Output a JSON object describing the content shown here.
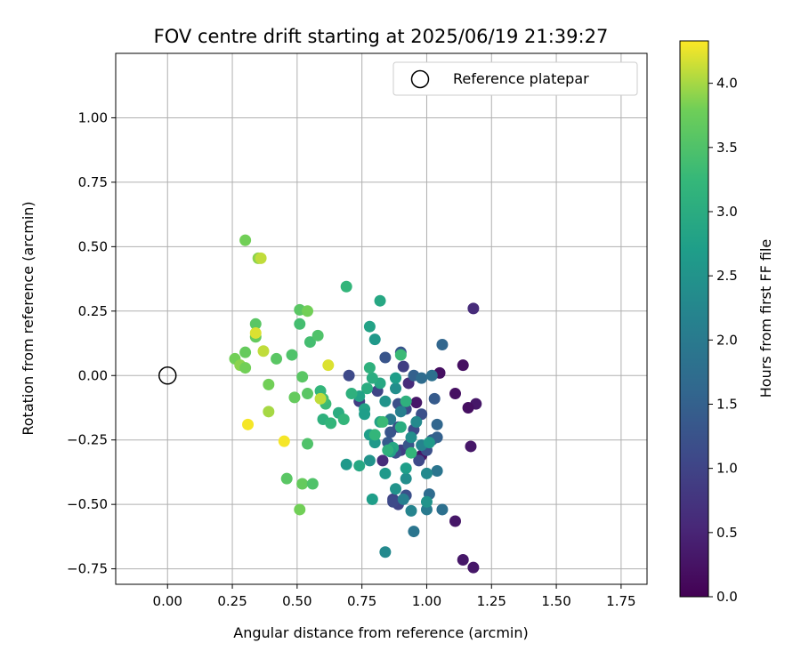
{
  "chart_data": {
    "type": "scatter",
    "title": "FOV centre drift starting at 2025/06/19 21:39:27",
    "xlabel": "Angular distance from reference (arcmin)",
    "ylabel": "Rotation from reference (arcmin)",
    "xlim": [
      -0.2,
      1.85
    ],
    "ylim": [
      -0.81,
      1.25
    ],
    "xticks": [
      "0.00",
      "0.25",
      "0.50",
      "0.75",
      "1.00",
      "1.25",
      "1.50",
      "1.75"
    ],
    "xtick_values": [
      0,
      0.25,
      0.5,
      0.75,
      1.0,
      1.25,
      1.5,
      1.75
    ],
    "yticks": [
      "−0.75",
      "−0.50",
      "−0.25",
      "0.00",
      "0.25",
      "0.50",
      "0.75",
      "1.00"
    ],
    "ytick_values": [
      -0.75,
      -0.5,
      -0.25,
      0,
      0.25,
      0.5,
      0.75,
      1.0
    ],
    "grid": true,
    "colormap": "viridis",
    "colorbar": {
      "label": "Hours from first FF file",
      "range": [
        0.0,
        4.33
      ],
      "ticks": [
        "0.0",
        "0.5",
        "1.0",
        "1.5",
        "2.0",
        "2.5",
        "3.0",
        "3.5",
        "4.0"
      ],
      "tick_values": [
        0,
        0.5,
        1.0,
        1.5,
        2.0,
        2.5,
        3.0,
        3.5,
        4.0
      ]
    },
    "legend": {
      "placement": "top-right",
      "label": "Reference platepar"
    },
    "reference": {
      "x": 0.0,
      "y": 0.0
    },
    "points": [
      {
        "x": 1.18,
        "y": -0.745,
        "c": 0.3
      },
      {
        "x": 1.14,
        "y": -0.715,
        "c": 0.3
      },
      {
        "x": 1.11,
        "y": -0.565,
        "c": 0.3
      },
      {
        "x": 1.17,
        "y": -0.275,
        "c": 0.3
      },
      {
        "x": 1.19,
        "y": -0.11,
        "c": 0.3
      },
      {
        "x": 1.16,
        "y": -0.125,
        "c": 0.2
      },
      {
        "x": 1.11,
        "y": -0.07,
        "c": 0.2
      },
      {
        "x": 1.14,
        "y": 0.04,
        "c": 0.2
      },
      {
        "x": 1.05,
        "y": 0.01,
        "c": 0.2
      },
      {
        "x": 1.18,
        "y": 0.26,
        "c": 0.6
      },
      {
        "x": 0.98,
        "y": -0.31,
        "c": 0.3
      },
      {
        "x": 0.96,
        "y": -0.105,
        "c": 0.3
      },
      {
        "x": 0.93,
        "y": -0.03,
        "c": 0.6
      },
      {
        "x": 0.91,
        "y": 0.035,
        "c": 0.9
      },
      {
        "x": 0.83,
        "y": -0.33,
        "c": 0.6
      },
      {
        "x": 0.9,
        "y": -0.29,
        "c": 0.9
      },
      {
        "x": 0.87,
        "y": -0.48,
        "c": 1.0
      },
      {
        "x": 0.89,
        "y": -0.5,
        "c": 1.0
      },
      {
        "x": 0.92,
        "y": -0.465,
        "c": 1.2
      },
      {
        "x": 0.87,
        "y": -0.49,
        "c": 1.1
      },
      {
        "x": 1.0,
        "y": -0.29,
        "c": 1.2
      },
      {
        "x": 0.97,
        "y": -0.33,
        "c": 1.1
      },
      {
        "x": 0.93,
        "y": -0.27,
        "c": 1.3
      },
      {
        "x": 0.88,
        "y": -0.3,
        "c": 1.2
      },
      {
        "x": 0.85,
        "y": -0.26,
        "c": 1.4
      },
      {
        "x": 0.86,
        "y": -0.22,
        "c": 1.3
      },
      {
        "x": 0.89,
        "y": -0.2,
        "c": 1.2
      },
      {
        "x": 0.95,
        "y": -0.21,
        "c": 1.1
      },
      {
        "x": 1.02,
        "y": -0.25,
        "c": 1.4
      },
      {
        "x": 1.04,
        "y": -0.24,
        "c": 1.5
      },
      {
        "x": 1.04,
        "y": -0.19,
        "c": 1.6
      },
      {
        "x": 1.03,
        "y": -0.09,
        "c": 1.4
      },
      {
        "x": 0.98,
        "y": -0.15,
        "c": 1.2
      },
      {
        "x": 0.92,
        "y": -0.13,
        "c": 1.1
      },
      {
        "x": 0.89,
        "y": -0.11,
        "c": 1.2
      },
      {
        "x": 0.81,
        "y": -0.06,
        "c": 1.0
      },
      {
        "x": 0.74,
        "y": -0.1,
        "c": 0.9
      },
      {
        "x": 0.7,
        "y": 0.0,
        "c": 1.1
      },
      {
        "x": 0.84,
        "y": 0.07,
        "c": 1.3
      },
      {
        "x": 0.9,
        "y": 0.09,
        "c": 1.3
      },
      {
        "x": 0.95,
        "y": 0.0,
        "c": 1.5
      },
      {
        "x": 0.98,
        "y": -0.01,
        "c": 1.7
      },
      {
        "x": 1.02,
        "y": 0.0,
        "c": 1.8
      },
      {
        "x": 1.06,
        "y": 0.12,
        "c": 1.6
      },
      {
        "x": 1.04,
        "y": -0.37,
        "c": 1.9
      },
      {
        "x": 1.06,
        "y": -0.52,
        "c": 1.8
      },
      {
        "x": 1.01,
        "y": -0.46,
        "c": 1.7
      },
      {
        "x": 1.0,
        "y": -0.52,
        "c": 2.0
      },
      {
        "x": 0.95,
        "y": -0.605,
        "c": 1.9
      },
      {
        "x": 0.94,
        "y": -0.525,
        "c": 2.2
      },
      {
        "x": 0.84,
        "y": -0.685,
        "c": 2.3
      },
      {
        "x": 0.91,
        "y": -0.48,
        "c": 2.1
      },
      {
        "x": 0.92,
        "y": -0.4,
        "c": 2.4
      },
      {
        "x": 0.88,
        "y": -0.44,
        "c": 2.5
      },
      {
        "x": 0.84,
        "y": -0.38,
        "c": 2.6
      },
      {
        "x": 0.92,
        "y": -0.36,
        "c": 2.7
      },
      {
        "x": 1.0,
        "y": -0.38,
        "c": 2.3
      },
      {
        "x": 1.0,
        "y": -0.49,
        "c": 2.5
      },
      {
        "x": 0.98,
        "y": -0.27,
        "c": 2.2
      },
      {
        "x": 1.01,
        "y": -0.26,
        "c": 2.6
      },
      {
        "x": 0.96,
        "y": -0.18,
        "c": 2.3
      },
      {
        "x": 0.94,
        "y": -0.24,
        "c": 2.4
      },
      {
        "x": 0.9,
        "y": -0.14,
        "c": 2.1
      },
      {
        "x": 0.86,
        "y": -0.17,
        "c": 2.0
      },
      {
        "x": 0.82,
        "y": -0.18,
        "c": 2.8
      },
      {
        "x": 0.8,
        "y": -0.26,
        "c": 2.6
      },
      {
        "x": 0.78,
        "y": -0.23,
        "c": 2.7
      },
      {
        "x": 0.87,
        "y": -0.28,
        "c": 2.9
      },
      {
        "x": 0.86,
        "y": -0.295,
        "c": 2.8
      },
      {
        "x": 0.78,
        "y": -0.33,
        "c": 2.5
      },
      {
        "x": 0.69,
        "y": -0.345,
        "c": 2.6
      },
      {
        "x": 0.74,
        "y": -0.35,
        "c": 2.9
      },
      {
        "x": 0.79,
        "y": -0.48,
        "c": 2.7
      },
      {
        "x": 0.88,
        "y": -0.05,
        "c": 2.4
      },
      {
        "x": 0.84,
        "y": -0.1,
        "c": 2.5
      },
      {
        "x": 0.82,
        "y": -0.03,
        "c": 2.9
      },
      {
        "x": 0.77,
        "y": -0.05,
        "c": 3.0
      },
      {
        "x": 0.74,
        "y": -0.08,
        "c": 2.8
      },
      {
        "x": 0.71,
        "y": -0.07,
        "c": 3.1
      },
      {
        "x": 0.76,
        "y": -0.13,
        "c": 2.8
      },
      {
        "x": 0.76,
        "y": -0.15,
        "c": 2.7
      },
      {
        "x": 0.79,
        "y": -0.01,
        "c": 3.0
      },
      {
        "x": 0.78,
        "y": 0.03,
        "c": 3.1
      },
      {
        "x": 0.88,
        "y": -0.01,
        "c": 2.7
      },
      {
        "x": 0.9,
        "y": 0.08,
        "c": 3.3
      },
      {
        "x": 0.78,
        "y": 0.19,
        "c": 2.8
      },
      {
        "x": 0.8,
        "y": 0.14,
        "c": 2.6
      },
      {
        "x": 0.82,
        "y": 0.29,
        "c": 2.9
      },
      {
        "x": 0.69,
        "y": 0.345,
        "c": 3.2
      },
      {
        "x": 0.9,
        "y": -0.2,
        "c": 3.0
      },
      {
        "x": 0.92,
        "y": -0.1,
        "c": 3.1
      },
      {
        "x": 0.94,
        "y": -0.3,
        "c": 3.2
      },
      {
        "x": 0.85,
        "y": -0.29,
        "c": 3.1
      },
      {
        "x": 0.8,
        "y": -0.23,
        "c": 3.2
      },
      {
        "x": 0.83,
        "y": -0.18,
        "c": 3.3
      },
      {
        "x": 0.66,
        "y": -0.145,
        "c": 3.0
      },
      {
        "x": 0.68,
        "y": -0.17,
        "c": 3.2
      },
      {
        "x": 0.6,
        "y": -0.17,
        "c": 3.1
      },
      {
        "x": 0.63,
        "y": -0.185,
        "c": 3.2
      },
      {
        "x": 0.61,
        "y": -0.11,
        "c": 3.3
      },
      {
        "x": 0.59,
        "y": -0.06,
        "c": 3.2
      },
      {
        "x": 0.6,
        "y": -0.09,
        "c": 3.4
      },
      {
        "x": 0.54,
        "y": -0.07,
        "c": 3.6
      },
      {
        "x": 0.49,
        "y": -0.085,
        "c": 3.7
      },
      {
        "x": 0.52,
        "y": -0.005,
        "c": 3.6
      },
      {
        "x": 0.54,
        "y": -0.265,
        "c": 3.5
      },
      {
        "x": 0.46,
        "y": -0.4,
        "c": 3.6
      },
      {
        "x": 0.52,
        "y": -0.42,
        "c": 3.7
      },
      {
        "x": 0.56,
        "y": -0.42,
        "c": 3.5
      },
      {
        "x": 0.51,
        "y": -0.52,
        "c": 3.8
      },
      {
        "x": 0.55,
        "y": 0.13,
        "c": 3.4
      },
      {
        "x": 0.58,
        "y": 0.155,
        "c": 3.5
      },
      {
        "x": 0.51,
        "y": 0.2,
        "c": 3.4
      },
      {
        "x": 0.51,
        "y": 0.255,
        "c": 3.6
      },
      {
        "x": 0.54,
        "y": 0.25,
        "c": 3.8
      },
      {
        "x": 0.48,
        "y": 0.08,
        "c": 3.5
      },
      {
        "x": 0.42,
        "y": 0.065,
        "c": 3.6
      },
      {
        "x": 0.39,
        "y": -0.035,
        "c": 3.8
      },
      {
        "x": 0.39,
        "y": -0.14,
        "c": 4.0
      },
      {
        "x": 0.34,
        "y": 0.2,
        "c": 3.6
      },
      {
        "x": 0.34,
        "y": 0.15,
        "c": 3.7
      },
      {
        "x": 0.34,
        "y": 0.165,
        "c": 4.2
      },
      {
        "x": 0.37,
        "y": 0.095,
        "c": 4.1
      },
      {
        "x": 0.3,
        "y": 0.09,
        "c": 3.7
      },
      {
        "x": 0.26,
        "y": 0.065,
        "c": 3.8
      },
      {
        "x": 0.28,
        "y": 0.04,
        "c": 3.9
      },
      {
        "x": 0.3,
        "y": 0.03,
        "c": 3.8
      },
      {
        "x": 0.3,
        "y": 0.525,
        "c": 3.8
      },
      {
        "x": 0.35,
        "y": 0.455,
        "c": 3.9
      },
      {
        "x": 0.36,
        "y": 0.455,
        "c": 4.1
      },
      {
        "x": 0.31,
        "y": -0.19,
        "c": 4.3
      },
      {
        "x": 0.45,
        "y": -0.255,
        "c": 4.3
      },
      {
        "x": 0.62,
        "y": 0.04,
        "c": 4.2
      },
      {
        "x": 0.59,
        "y": -0.09,
        "c": 4.1
      }
    ]
  }
}
